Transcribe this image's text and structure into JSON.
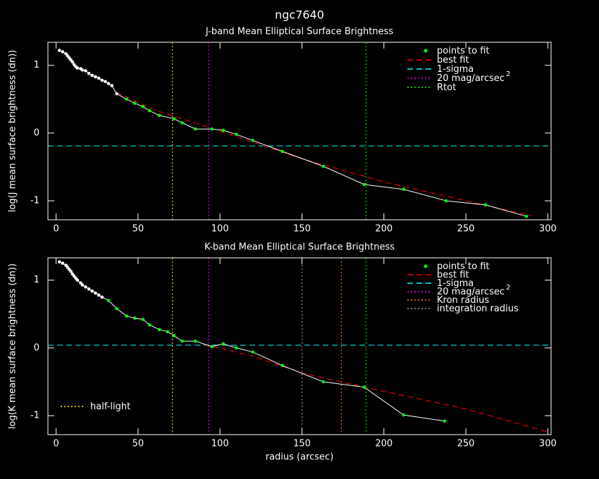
{
  "title": "ngc7640",
  "chart_data": [
    {
      "type": "line",
      "title": "J-band Mean Elliptical Surface Brightness",
      "y_label": "log(J mean surface brightness (dn))",
      "xlim": [
        -5,
        302
      ],
      "ylim": [
        -1.28,
        1.34
      ],
      "xticks": [
        0,
        50,
        100,
        150,
        200,
        250,
        300
      ],
      "yticks": [
        -1,
        0,
        1
      ],
      "legend": "upper right",
      "series": [
        {
          "color": "#ffffff",
          "x": [
            2,
            4,
            6,
            7,
            8,
            9,
            10,
            11,
            12,
            13,
            15,
            16,
            18,
            20,
            22,
            24,
            26,
            28,
            30,
            32,
            34,
            37
          ],
          "values": [
            1.22,
            1.2,
            1.17,
            1.14,
            1.11,
            1.08,
            1.05,
            1.01,
            0.98,
            0.96,
            0.95,
            0.93,
            0.92,
            0.88,
            0.85,
            0.83,
            0.81,
            0.78,
            0.76,
            0.73,
            0.7,
            0.58
          ]
        },
        {
          "name": "points to fit",
          "color": "#00ff00",
          "x": [
            43,
            48,
            53,
            57,
            63,
            72,
            77,
            85,
            95,
            102,
            110,
            120,
            138,
            163,
            188,
            212,
            238,
            262,
            287
          ],
          "values": [
            0.5,
            0.44,
            0.39,
            0.33,
            0.26,
            0.21,
            0.15,
            0.06,
            0.06,
            0.04,
            -0.02,
            -0.11,
            -0.27,
            -0.49,
            -0.76,
            -0.83,
            -1.0,
            -1.06,
            -1.23
          ]
        },
        {
          "name": "best fit",
          "color": "#ff0000",
          "style": "dashed",
          "x": [
            37,
            60,
            100,
            150,
            200,
            250,
            290
          ],
          "values": [
            0.6,
            0.34,
            0.03,
            -0.38,
            -0.72,
            -1.0,
            -1.22
          ]
        }
      ],
      "hlines": [
        {
          "name": "1-sigma",
          "color": "#00ffff",
          "y": -0.19
        }
      ],
      "vlines": [
        {
          "name": "20 mag/arcsec",
          "name_sup": "2",
          "color": "#ff00ff",
          "x": 93
        },
        {
          "name": "Rtot",
          "color": "#00ff00",
          "x": 189
        },
        {
          "color": "#ffff00",
          "x": 71
        }
      ]
    },
    {
      "type": "line",
      "title": "K-band Mean Elliptical Surface Brightness",
      "y_label": "log(K mean surface brightness (dn))",
      "x_label": "radius (arcsec)",
      "xlim": [
        -5,
        302
      ],
      "ylim": [
        -1.28,
        1.33
      ],
      "xticks": [
        0,
        50,
        100,
        150,
        200,
        250,
        300
      ],
      "yticks": [
        -1,
        0,
        1
      ],
      "legend": "upper right",
      "series": [
        {
          "color": "#ffffff",
          "x": [
            2,
            4,
            6,
            7,
            8,
            9,
            10,
            11,
            12,
            13,
            15,
            16,
            18,
            20,
            22,
            24,
            26,
            28
          ],
          "values": [
            1.27,
            1.25,
            1.22,
            1.19,
            1.16,
            1.13,
            1.09,
            1.06,
            1.03,
            1.0,
            0.96,
            0.93,
            0.9,
            0.87,
            0.84,
            0.81,
            0.78,
            0.75
          ]
        },
        {
          "name": "points to fit",
          "color": "#00ff00",
          "x": [
            32,
            37,
            43,
            48,
            53,
            57,
            63,
            68,
            72,
            77,
            85,
            95,
            102,
            110,
            120,
            138,
            163,
            188,
            212,
            237
          ],
          "values": [
            0.7,
            0.58,
            0.47,
            0.44,
            0.42,
            0.34,
            0.27,
            0.24,
            0.18,
            0.1,
            0.1,
            0.02,
            0.06,
            0.0,
            -0.06,
            -0.26,
            -0.5,
            -0.58,
            -0.99,
            -1.08
          ]
        },
        {
          "name": "best fit",
          "color": "#ff0000",
          "style": "dashed",
          "x": [
            90,
            120,
            150,
            188,
            250,
            300
          ],
          "values": [
            0.05,
            -0.12,
            -0.37,
            -0.58,
            -0.9,
            -1.24
          ]
        }
      ],
      "hlines": [
        {
          "name": "1-sigma",
          "color": "#00ffff",
          "y": 0.04
        }
      ],
      "vlines": [
        {
          "name": "20 mag/arcsec",
          "name_sup": "2",
          "color": "#ff00ff",
          "x": 93
        },
        {
          "name": "Kron radius",
          "color": "#ff8000",
          "x": 174
        },
        {
          "name": "integration radius",
          "color": "#a0a0a0",
          "x": 150
        },
        {
          "color": "#00ff00",
          "x": 189
        },
        {
          "name": "half-light",
          "color": "#ffff00",
          "x": 71,
          "legend": "lower left"
        }
      ]
    }
  ]
}
